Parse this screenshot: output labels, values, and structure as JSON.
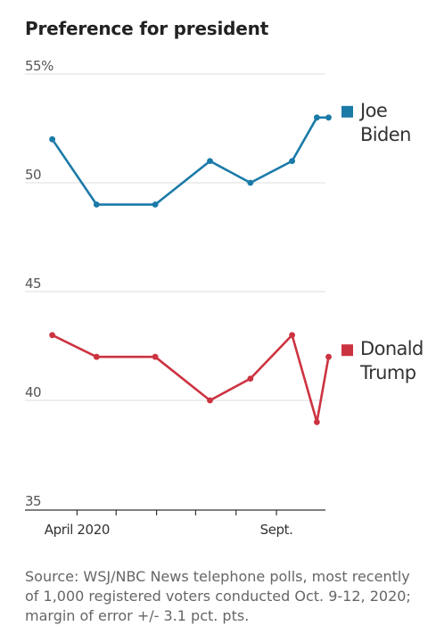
{
  "title": "Preference for president",
  "source": "Source: WSJ/NBC News telephone polls, most recently of 1,000 registered voters conducted Oct. 9-12, 2020; margin of error +/- 3.1 pct. pts.",
  "chart_data": {
    "type": "line",
    "ylim": [
      35,
      55
    ],
    "y_ticks": [
      {
        "value": 55,
        "label": "55%"
      },
      {
        "value": 50,
        "label": "50"
      },
      {
        "value": 45,
        "label": "45"
      },
      {
        "value": 40,
        "label": "40"
      },
      {
        "value": 35,
        "label": "35"
      }
    ],
    "x_ticks": [
      {
        "date": "2020-04-01",
        "label": "April 2020"
      },
      {
        "date": "2020-05-01",
        "label": ""
      },
      {
        "date": "2020-06-01",
        "label": ""
      },
      {
        "date": "2020-07-01",
        "label": ""
      },
      {
        "date": "2020-08-01",
        "label": ""
      },
      {
        "date": "2020-09-01",
        "label": "Sept."
      }
    ],
    "xlim": [
      "2020-03-03",
      "2020-10-12"
    ],
    "grid": true,
    "series": [
      {
        "name": "Joe Biden",
        "label_lines": [
          "Joe",
          "Biden"
        ],
        "color": "#1a7aa8",
        "points": [
          {
            "x": "2020-03-13",
            "y": 52
          },
          {
            "x": "2020-04-16",
            "y": 49
          },
          {
            "x": "2020-05-31",
            "y": 49
          },
          {
            "x": "2020-07-12",
            "y": 51
          },
          {
            "x": "2020-08-12",
            "y": 50
          },
          {
            "x": "2020-09-13",
            "y": 51
          },
          {
            "x": "2020-10-02",
            "y": 53
          },
          {
            "x": "2020-10-11",
            "y": 53
          }
        ]
      },
      {
        "name": "Donald Trump",
        "label_lines": [
          "Donald",
          "Trump"
        ],
        "color": "#cc3340",
        "points": [
          {
            "x": "2020-03-13",
            "y": 43
          },
          {
            "x": "2020-04-16",
            "y": 42
          },
          {
            "x": "2020-05-31",
            "y": 42
          },
          {
            "x": "2020-07-12",
            "y": 40
          },
          {
            "x": "2020-08-12",
            "y": 41
          },
          {
            "x": "2020-09-13",
            "y": 43
          },
          {
            "x": "2020-10-02",
            "y": 39
          },
          {
            "x": "2020-10-11",
            "y": 42
          }
        ]
      }
    ]
  }
}
